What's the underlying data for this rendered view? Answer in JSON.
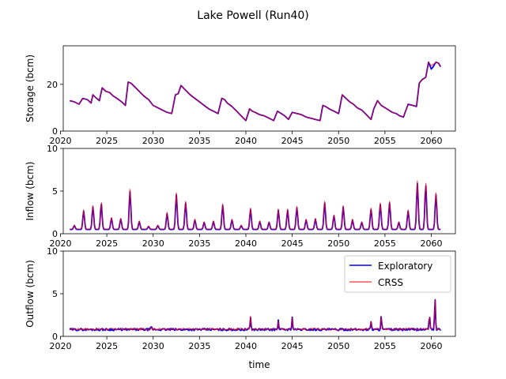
{
  "figure": {
    "title": "Lake Powell (Run40)"
  },
  "colors": {
    "exploratory": "#0000ff",
    "crss": "#ff0000",
    "axes": "#000000",
    "background": "#ffffff"
  },
  "chart_data": [
    {
      "type": "line",
      "ylabel": "Storage (bcm)",
      "xlabel": "",
      "xlim": [
        2020.3,
        2062.6
      ],
      "ylim": [
        0,
        36.5
      ],
      "xticks": [
        2020,
        2025,
        2030,
        2035,
        2040,
        2045,
        2050,
        2055,
        2060
      ],
      "yticks": [
        0,
        20
      ],
      "grid": false,
      "series": [
        {
          "key": "exploratory",
          "x": [
            2021.0,
            2021.5,
            2022.0,
            2022.4,
            2022.9,
            2023.3,
            2023.5,
            2023.9,
            2024.2,
            2024.5,
            2024.9,
            2025.3,
            2025.7,
            2026.1,
            2026.6,
            2027.0,
            2027.3,
            2027.6,
            2028.0,
            2028.5,
            2029.0,
            2029.5,
            2030.0,
            2030.5,
            2031.0,
            2031.5,
            2032.0,
            2032.4,
            2032.7,
            2033.0,
            2033.5,
            2034.0,
            2034.5,
            2035.0,
            2035.5,
            2036.0,
            2036.5,
            2037.0,
            2037.4,
            2037.7,
            2038.0,
            2038.5,
            2039.0,
            2039.5,
            2040.0,
            2040.4,
            2040.7,
            2041.0,
            2041.5,
            2042.0,
            2042.5,
            2043.0,
            2043.4,
            2043.8,
            2044.2,
            2044.6,
            2045.0,
            2045.5,
            2046.0,
            2046.5,
            2047.0,
            2047.5,
            2048.0,
            2048.3,
            2048.6,
            2049.0,
            2049.5,
            2050.0,
            2050.4,
            2050.8,
            2051.2,
            2051.6,
            2052.0,
            2052.5,
            2053.0,
            2053.5,
            2053.8,
            2054.2,
            2054.6,
            2055.0,
            2055.4,
            2055.8,
            2056.2,
            2056.6,
            2057.0,
            2057.5,
            2058.0,
            2058.4,
            2058.7,
            2059.0,
            2059.4,
            2059.7,
            2060.0,
            2060.2,
            2060.5,
            2060.8,
            2061.0
          ],
          "y": [
            13.0,
            12.5,
            11.5,
            14.0,
            13.5,
            12.0,
            15.5,
            14.0,
            13.0,
            18.5,
            17.0,
            16.5,
            15.0,
            14.0,
            12.5,
            11.0,
            21.0,
            20.5,
            19.0,
            17.0,
            15.0,
            13.5,
            11.0,
            10.0,
            9.0,
            8.0,
            7.5,
            15.5,
            16.0,
            19.5,
            17.5,
            15.5,
            14.0,
            12.5,
            11.0,
            9.5,
            8.5,
            7.5,
            14.0,
            13.5,
            12.0,
            10.5,
            8.5,
            6.5,
            4.5,
            9.5,
            8.5,
            8.0,
            7.0,
            6.5,
            5.5,
            4.5,
            8.5,
            7.5,
            6.5,
            5.0,
            8.0,
            7.5,
            7.0,
            6.0,
            5.5,
            5.0,
            4.5,
            11.0,
            10.5,
            9.5,
            8.5,
            7.5,
            15.5,
            14.0,
            12.5,
            11.5,
            10.0,
            9.0,
            7.0,
            5.0,
            9.5,
            13.0,
            11.0,
            10.0,
            9.0,
            8.0,
            7.5,
            6.5,
            6.0,
            11.5,
            11.0,
            10.5,
            20.5,
            22.0,
            23.0,
            29.5,
            26.5,
            27.5,
            29.5,
            29.0,
            27.5
          ]
        },
        {
          "key": "crss",
          "x": [
            2021.0,
            2021.5,
            2022.0,
            2022.4,
            2022.9,
            2023.3,
            2023.5,
            2023.9,
            2024.2,
            2024.5,
            2024.9,
            2025.3,
            2025.7,
            2026.1,
            2026.6,
            2027.0,
            2027.3,
            2027.6,
            2028.0,
            2028.5,
            2029.0,
            2029.5,
            2030.0,
            2030.5,
            2031.0,
            2031.5,
            2032.0,
            2032.4,
            2032.7,
            2033.0,
            2033.5,
            2034.0,
            2034.5,
            2035.0,
            2035.5,
            2036.0,
            2036.5,
            2037.0,
            2037.4,
            2037.7,
            2038.0,
            2038.5,
            2039.0,
            2039.5,
            2040.0,
            2040.4,
            2040.7,
            2041.0,
            2041.5,
            2042.0,
            2042.5,
            2043.0,
            2043.4,
            2043.8,
            2044.2,
            2044.6,
            2045.0,
            2045.5,
            2046.0,
            2046.5,
            2047.0,
            2047.5,
            2048.0,
            2048.3,
            2048.6,
            2049.0,
            2049.5,
            2050.0,
            2050.4,
            2050.8,
            2051.2,
            2051.6,
            2052.0,
            2052.5,
            2053.0,
            2053.5,
            2053.8,
            2054.2,
            2054.6,
            2055.0,
            2055.4,
            2055.8,
            2056.2,
            2056.6,
            2057.0,
            2057.5,
            2058.0,
            2058.4,
            2058.7,
            2059.0,
            2059.4,
            2059.7,
            2060.0,
            2060.2,
            2060.5,
            2060.8,
            2061.0
          ],
          "y": [
            13.0,
            12.5,
            11.5,
            14.0,
            13.5,
            12.0,
            15.5,
            14.0,
            13.0,
            18.5,
            17.0,
            16.5,
            15.0,
            14.0,
            12.5,
            11.0,
            21.0,
            20.5,
            19.0,
            17.0,
            15.0,
            13.5,
            11.0,
            10.0,
            9.0,
            8.0,
            7.5,
            15.5,
            16.0,
            19.5,
            17.5,
            15.5,
            14.0,
            12.5,
            11.0,
            9.5,
            8.5,
            7.5,
            14.0,
            13.5,
            12.0,
            10.5,
            8.5,
            6.5,
            4.5,
            9.5,
            8.5,
            8.0,
            7.0,
            6.5,
            5.5,
            4.5,
            8.5,
            7.5,
            6.5,
            5.0,
            8.0,
            7.5,
            7.0,
            6.0,
            5.5,
            5.0,
            4.5,
            11.0,
            10.5,
            9.5,
            8.5,
            7.5,
            15.5,
            14.0,
            12.5,
            11.5,
            10.0,
            9.0,
            7.0,
            5.0,
            9.5,
            13.0,
            11.0,
            10.0,
            9.0,
            8.0,
            7.5,
            6.5,
            6.0,
            11.5,
            11.0,
            10.5,
            20.5,
            22.0,
            23.0,
            29.5,
            28.0,
            28.5,
            29.5,
            29.0,
            27.5
          ]
        }
      ]
    },
    {
      "type": "line",
      "ylabel": "Inflow (bcm)",
      "xlabel": "",
      "xlim": [
        2020.3,
        2062.6
      ],
      "ylim": [
        0,
        10
      ],
      "xticks": [
        2020,
        2025,
        2030,
        2035,
        2040,
        2045,
        2050,
        2055,
        2060
      ],
      "yticks": [
        0,
        5,
        10
      ],
      "grid": false,
      "peak_years": [
        2021.5,
        2022.5,
        2023.5,
        2024.4,
        2025.5,
        2026.5,
        2027.5,
        2028.5,
        2029.5,
        2030.5,
        2031.5,
        2032.5,
        2033.5,
        2034.5,
        2035.5,
        2036.5,
        2037.5,
        2038.5,
        2039.5,
        2040.5,
        2041.5,
        2042.5,
        2043.5,
        2044.5,
        2045.5,
        2046.5,
        2047.5,
        2048.5,
        2049.5,
        2050.5,
        2051.5,
        2052.5,
        2053.5,
        2054.5,
        2055.5,
        2056.5,
        2057.5,
        2058.5,
        2059.4,
        2060.5
      ],
      "peak_values": [
        1.0,
        2.8,
        3.3,
        3.7,
        1.9,
        1.8,
        5.2,
        1.5,
        0.9,
        1.0,
        2.5,
        4.8,
        3.8,
        1.7,
        1.4,
        1.5,
        3.5,
        1.7,
        1.0,
        3.0,
        1.5,
        1.4,
        2.9,
        2.9,
        3.2,
        1.7,
        1.8,
        3.8,
        2.2,
        3.3,
        1.7,
        1.4,
        3.0,
        3.6,
        3.8,
        1.4,
        2.8,
        6.2,
        6.0,
        4.8
      ],
      "series": [
        {
          "key": "exploratory",
          "base": 0.5,
          "peak_scale": 0.95
        },
        {
          "key": "crss",
          "base": 0.55,
          "peak_scale": 1.0
        }
      ]
    },
    {
      "type": "line",
      "ylabel": "Outflow (bcm)",
      "xlabel": "time",
      "xlim": [
        2020.3,
        2062.6
      ],
      "ylim": [
        0,
        10
      ],
      "xticks": [
        2020,
        2025,
        2030,
        2035,
        2040,
        2045,
        2050,
        2055,
        2060
      ],
      "yticks": [
        0,
        5,
        10
      ],
      "grid": false,
      "legend": {
        "placement": "top-right",
        "entries": [
          "Exploratory",
          "CRSS"
        ]
      },
      "spike_years": [
        2029.8,
        2040.5,
        2043.5,
        2045.0,
        2053.5,
        2054.6,
        2059.8,
        2060.4
      ],
      "spike_values": [
        1.1,
        2.3,
        1.8,
        2.2,
        1.8,
        2.4,
        2.6,
        4.6
      ],
      "series": [
        {
          "key": "exploratory",
          "name": "Exploratory",
          "base": 0.8
        },
        {
          "key": "crss",
          "name": "CRSS",
          "base": 0.85
        }
      ]
    }
  ]
}
